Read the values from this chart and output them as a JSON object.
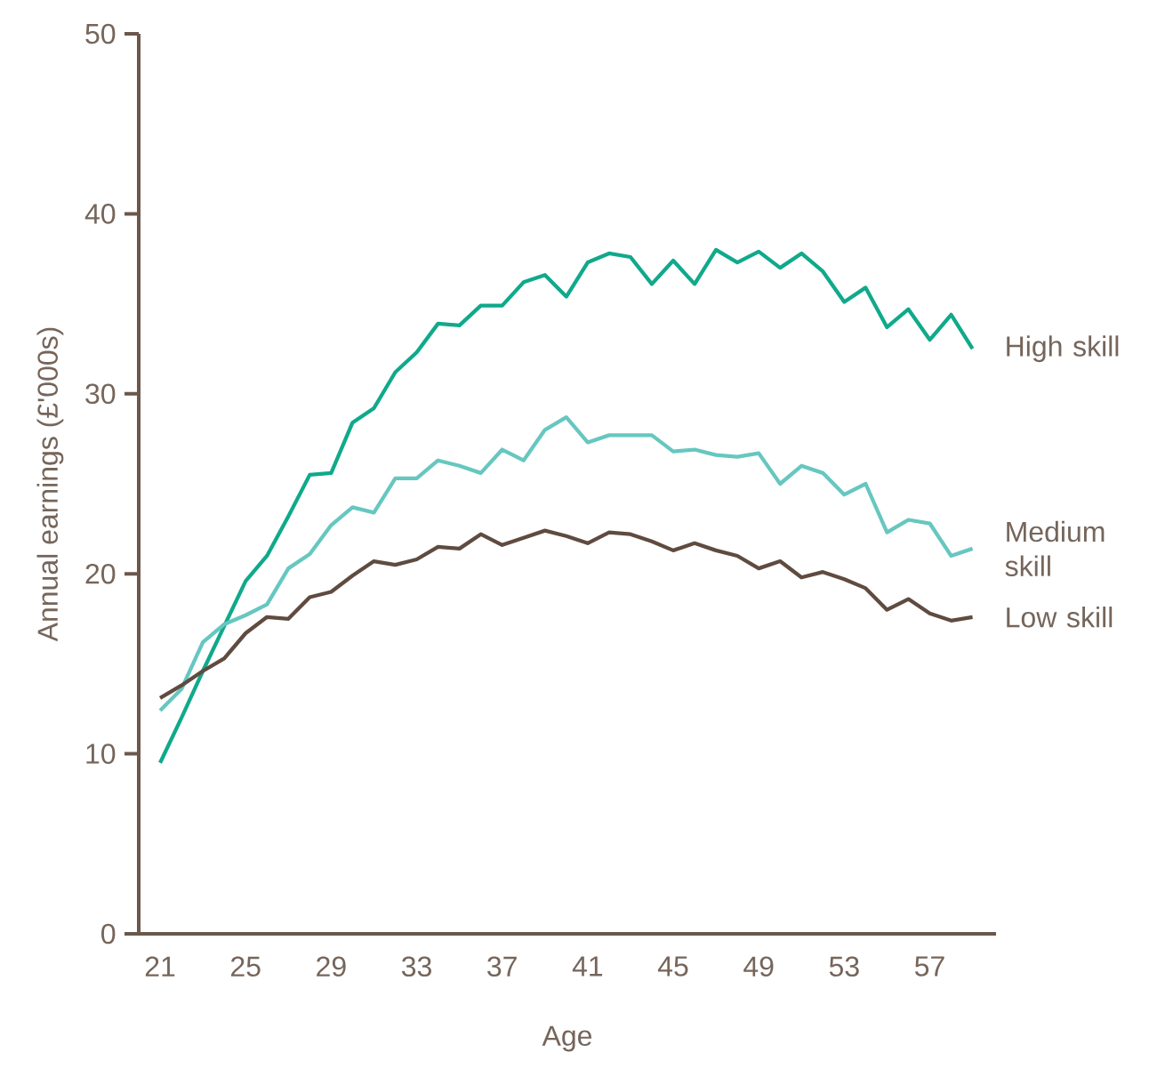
{
  "chart_data": {
    "type": "line",
    "xlabel": "Age",
    "ylabel": "Annual earnings (£'000s)",
    "x": [
      21,
      22,
      23,
      24,
      25,
      26,
      27,
      28,
      29,
      30,
      31,
      32,
      33,
      34,
      35,
      36,
      37,
      38,
      39,
      40,
      41,
      42,
      43,
      44,
      45,
      46,
      47,
      48,
      49,
      50,
      51,
      52,
      53,
      54,
      55,
      56,
      57,
      58,
      59
    ],
    "xlim": [
      20,
      60.1
    ],
    "xticks": [
      21,
      25,
      29,
      33,
      37,
      41,
      45,
      49,
      53,
      57
    ],
    "ylim": [
      0,
      50
    ],
    "yticks": [
      0,
      10,
      20,
      30,
      40,
      50
    ],
    "marker": "none",
    "line_style": "solid",
    "series": [
      {
        "name": "High skill",
        "color": "#10a98b",
        "values": [
          9.5,
          12.0,
          14.6,
          17.1,
          19.6,
          21.0,
          23.2,
          25.5,
          25.6,
          28.4,
          29.2,
          31.2,
          32.3,
          33.9,
          33.8,
          34.9,
          34.9,
          36.2,
          36.6,
          35.4,
          37.3,
          37.8,
          37.6,
          36.1,
          37.4,
          36.1,
          38.0,
          37.3,
          37.9,
          37.0,
          37.8,
          36.8,
          35.1,
          35.9,
          33.7,
          34.7,
          33.0,
          34.4,
          32.5
        ]
      },
      {
        "name": "Medium skill",
        "color": "#66c7c0",
        "values": [
          12.4,
          13.6,
          16.2,
          17.2,
          17.7,
          18.3,
          20.3,
          21.1,
          22.7,
          23.7,
          23.4,
          25.3,
          25.3,
          26.3,
          26.0,
          25.6,
          26.9,
          26.3,
          28.0,
          28.7,
          27.3,
          27.7,
          27.7,
          27.7,
          26.8,
          26.9,
          26.6,
          26.5,
          26.7,
          25.0,
          26.0,
          25.6,
          24.4,
          25.0,
          22.3,
          23.0,
          22.8,
          21.0,
          21.4
        ]
      },
      {
        "name": "Low skill",
        "color": "#5f4b3f",
        "values": [
          13.1,
          13.8,
          14.6,
          15.3,
          16.7,
          17.6,
          17.5,
          18.7,
          19.0,
          19.9,
          20.7,
          20.5,
          20.8,
          21.5,
          21.4,
          22.2,
          21.6,
          22.0,
          22.4,
          22.1,
          21.7,
          22.3,
          22.2,
          21.8,
          21.3,
          21.7,
          21.3,
          21.0,
          20.3,
          20.7,
          19.8,
          20.1,
          19.7,
          19.2,
          18.0,
          18.6,
          17.8,
          17.4,
          17.6
        ]
      }
    ]
  }
}
